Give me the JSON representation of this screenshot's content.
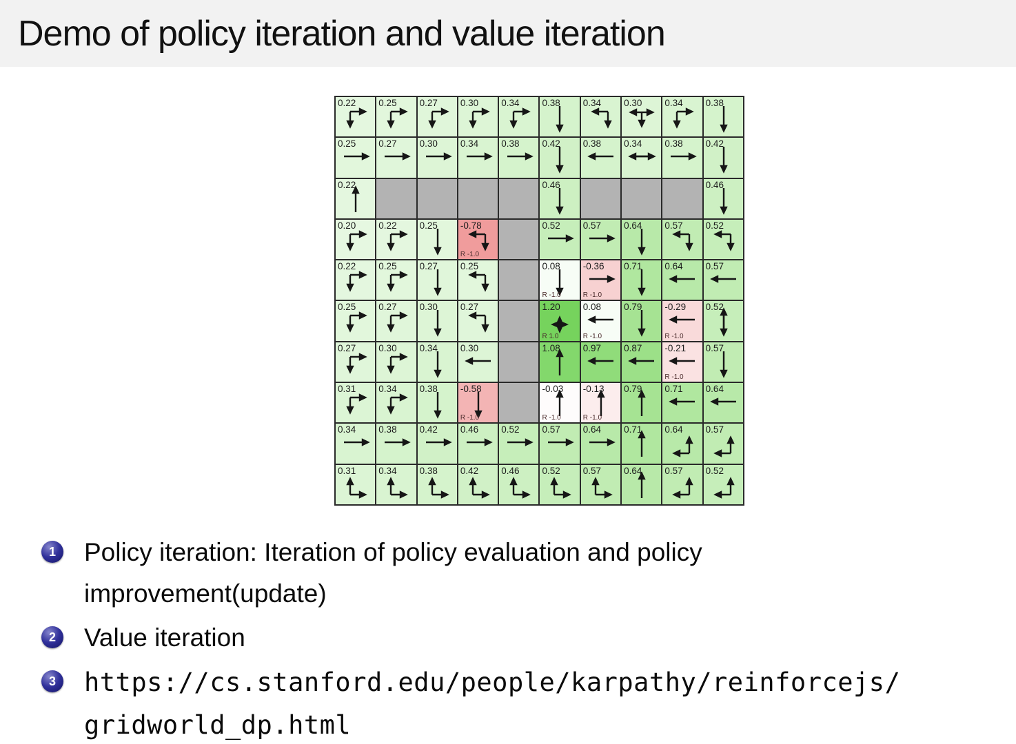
{
  "title": "Demo of policy iteration and value iteration",
  "colors": {
    "title_bar_bg": "#f2f2f2",
    "slide_bg": "#ffffff",
    "wall": "#b3b3b3",
    "grid_line": "#2a2a2a",
    "arrow": "#161616",
    "goal_green": "#76d35d",
    "penalty_red": "#f09c9c",
    "badge_navy": "#31319b"
  },
  "gridworld": {
    "description": "10x10 gridworld with state values, greedy policy arrows, reward labels and wall cells",
    "rows": [
      [
        {
          "value": "0.22",
          "arrows": [
            "down",
            "right"
          ],
          "bg": "#e4f7df"
        },
        {
          "value": "0.25",
          "arrows": [
            "down",
            "right"
          ],
          "bg": "#e2f7dc"
        },
        {
          "value": "0.27",
          "arrows": [
            "down",
            "right"
          ],
          "bg": "#e0f6da"
        },
        {
          "value": "0.30",
          "arrows": [
            "down",
            "right"
          ],
          "bg": "#ddf5d6"
        },
        {
          "value": "0.34",
          "arrows": [
            "down",
            "right"
          ],
          "bg": "#d9f4d1"
        },
        {
          "value": "0.38",
          "arrows": [
            "down"
          ],
          "bg": "#d5f3cc"
        },
        {
          "value": "0.34",
          "arrows": [
            "left",
            "down"
          ],
          "bg": "#d9f4d1"
        },
        {
          "value": "0.30",
          "arrows": [
            "left",
            "right",
            "down"
          ],
          "bg": "#ddf5d6"
        },
        {
          "value": "0.34",
          "arrows": [
            "down",
            "right"
          ],
          "bg": "#d9f4d1"
        },
        {
          "value": "0.38",
          "arrows": [
            "down"
          ],
          "bg": "#d5f3cc"
        }
      ],
      [
        {
          "value": "0.25",
          "arrows": [
            "right"
          ],
          "bg": "#e2f7dc"
        },
        {
          "value": "0.27",
          "arrows": [
            "right"
          ],
          "bg": "#e0f6da"
        },
        {
          "value": "0.30",
          "arrows": [
            "right"
          ],
          "bg": "#ddf5d6"
        },
        {
          "value": "0.34",
          "arrows": [
            "right"
          ],
          "bg": "#d9f4d1"
        },
        {
          "value": "0.38",
          "arrows": [
            "right"
          ],
          "bg": "#d5f3cc"
        },
        {
          "value": "0.42",
          "arrows": [
            "down"
          ],
          "bg": "#d1f1c7"
        },
        {
          "value": "0.38",
          "arrows": [
            "left"
          ],
          "bg": "#d5f3cc"
        },
        {
          "value": "0.34",
          "arrows": [
            "left",
            "right"
          ],
          "bg": "#d9f4d1"
        },
        {
          "value": "0.38",
          "arrows": [
            "right"
          ],
          "bg": "#d5f3cc"
        },
        {
          "value": "0.42",
          "arrows": [
            "down"
          ],
          "bg": "#d1f1c7"
        }
      ],
      [
        {
          "value": "0.22",
          "arrows": [
            "up"
          ],
          "bg": "#e4f7df"
        },
        {
          "wall": true
        },
        {
          "wall": true
        },
        {
          "wall": true
        },
        {
          "wall": true
        },
        {
          "value": "0.46",
          "arrows": [
            "down"
          ],
          "bg": "#cdf0c2"
        },
        {
          "wall": true
        },
        {
          "wall": true
        },
        {
          "wall": true
        },
        {
          "value": "0.46",
          "arrows": [
            "down"
          ],
          "bg": "#cdf0c2"
        }
      ],
      [
        {
          "value": "0.20",
          "arrows": [
            "down",
            "right"
          ],
          "bg": "#e6f8e1"
        },
        {
          "value": "0.22",
          "arrows": [
            "down",
            "right"
          ],
          "bg": "#e4f7df"
        },
        {
          "value": "0.25",
          "arrows": [
            "down"
          ],
          "bg": "#e2f7dc"
        },
        {
          "value": "-0.78",
          "arrows": [
            "left",
            "down"
          ],
          "bg": "#f09c9c",
          "reward": "R -1.0"
        },
        {
          "wall": true
        },
        {
          "value": "0.52",
          "arrows": [
            "right"
          ],
          "bg": "#c6eeba"
        },
        {
          "value": "0.57",
          "arrows": [
            "right"
          ],
          "bg": "#c1ecb3"
        },
        {
          "value": "0.64",
          "arrows": [
            "down"
          ],
          "bg": "#b8e9a9"
        },
        {
          "value": "0.57",
          "arrows": [
            "left",
            "down"
          ],
          "bg": "#c1ecb3"
        },
        {
          "value": "0.52",
          "arrows": [
            "left",
            "down"
          ],
          "bg": "#c6eeba"
        }
      ],
      [
        {
          "value": "0.22",
          "arrows": [
            "down",
            "right"
          ],
          "bg": "#e4f7df"
        },
        {
          "value": "0.25",
          "arrows": [
            "down",
            "right"
          ],
          "bg": "#e2f7dc"
        },
        {
          "value": "0.27",
          "arrows": [
            "down"
          ],
          "bg": "#e0f6da"
        },
        {
          "value": "0.25",
          "arrows": [
            "left",
            "down"
          ],
          "bg": "#e2f7dc"
        },
        {
          "wall": true
        },
        {
          "value": "0.08",
          "arrows": [
            "down"
          ],
          "bg": "#f7fdf6",
          "reward": "R -1.0"
        },
        {
          "value": "-0.36",
          "arrows": [
            "right"
          ],
          "bg": "#f7d1d1",
          "reward": "R -1.0"
        },
        {
          "value": "0.71",
          "arrows": [
            "down"
          ],
          "bg": "#b0e79f"
        },
        {
          "value": "0.64",
          "arrows": [
            "left"
          ],
          "bg": "#b8e9a9"
        },
        {
          "value": "0.57",
          "arrows": [
            "left"
          ],
          "bg": "#c1ecb3"
        }
      ],
      [
        {
          "value": "0.25",
          "arrows": [
            "down",
            "right"
          ],
          "bg": "#e2f7dc"
        },
        {
          "value": "0.27",
          "arrows": [
            "down",
            "right"
          ],
          "bg": "#e0f6da"
        },
        {
          "value": "0.30",
          "arrows": [
            "down"
          ],
          "bg": "#ddf5d6"
        },
        {
          "value": "0.27",
          "arrows": [
            "left",
            "down"
          ],
          "bg": "#e0f6da"
        },
        {
          "wall": true
        },
        {
          "value": "1.20",
          "arrows": [],
          "marker": "diamond",
          "bg": "#76d35d",
          "reward": "R 1.0"
        },
        {
          "value": "0.08",
          "arrows": [
            "left"
          ],
          "bg": "#f7fdf6",
          "reward": "R -1.0"
        },
        {
          "value": "0.79",
          "arrows": [
            "down"
          ],
          "bg": "#a6e393"
        },
        {
          "value": "-0.29",
          "arrows": [
            "left"
          ],
          "bg": "#f9dada",
          "reward": "R -1.0"
        },
        {
          "value": "0.52",
          "arrows": [
            "up",
            "down"
          ],
          "bg": "#c6eeba"
        }
      ],
      [
        {
          "value": "0.27",
          "arrows": [
            "down",
            "right"
          ],
          "bg": "#e0f6da"
        },
        {
          "value": "0.30",
          "arrows": [
            "down",
            "right"
          ],
          "bg": "#ddf5d6"
        },
        {
          "value": "0.34",
          "arrows": [
            "down"
          ],
          "bg": "#d9f4d1"
        },
        {
          "value": "0.30",
          "arrows": [
            "left"
          ],
          "bg": "#ddf5d6"
        },
        {
          "wall": true
        },
        {
          "value": "1.08",
          "arrows": [
            "up"
          ],
          "bg": "#83d86c"
        },
        {
          "value": "0.97",
          "arrows": [
            "left"
          ],
          "bg": "#90dc7a"
        },
        {
          "value": "0.87",
          "arrows": [
            "left"
          ],
          "bg": "#9ce088"
        },
        {
          "value": "-0.21",
          "arrows": [
            "left"
          ],
          "bg": "#fae2e2",
          "reward": "R -1.0"
        },
        {
          "value": "0.57",
          "arrows": [
            "down"
          ],
          "bg": "#c1ecb3"
        }
      ],
      [
        {
          "value": "0.31",
          "arrows": [
            "down",
            "right"
          ],
          "bg": "#dcf5d5"
        },
        {
          "value": "0.34",
          "arrows": [
            "down",
            "right"
          ],
          "bg": "#d9f4d1"
        },
        {
          "value": "0.38",
          "arrows": [
            "down"
          ],
          "bg": "#d5f3cc"
        },
        {
          "value": "-0.58",
          "arrows": [
            "down"
          ],
          "bg": "#f3b4b4",
          "reward": "R -1.0"
        },
        {
          "wall": true
        },
        {
          "value": "-0.03",
          "arrows": [
            "up"
          ],
          "bg": "#fefcfc",
          "reward": "R -1.0"
        },
        {
          "value": "-0.13",
          "arrows": [
            "up"
          ],
          "bg": "#fceded",
          "reward": "R -1.0"
        },
        {
          "value": "0.79",
          "arrows": [
            "up"
          ],
          "bg": "#a6e393"
        },
        {
          "value": "0.71",
          "arrows": [
            "left"
          ],
          "bg": "#b0e79f"
        },
        {
          "value": "0.64",
          "arrows": [
            "left"
          ],
          "bg": "#b8e9a9"
        }
      ],
      [
        {
          "value": "0.34",
          "arrows": [
            "right"
          ],
          "bg": "#d9f4d1"
        },
        {
          "value": "0.38",
          "arrows": [
            "right"
          ],
          "bg": "#d5f3cc"
        },
        {
          "value": "0.42",
          "arrows": [
            "right"
          ],
          "bg": "#d1f1c7"
        },
        {
          "value": "0.46",
          "arrows": [
            "right"
          ],
          "bg": "#cdf0c2"
        },
        {
          "value": "0.52",
          "arrows": [
            "right"
          ],
          "bg": "#c6eeba"
        },
        {
          "value": "0.57",
          "arrows": [
            "right"
          ],
          "bg": "#c1ecb3"
        },
        {
          "value": "0.64",
          "arrows": [
            "right"
          ],
          "bg": "#b8e9a9"
        },
        {
          "value": "0.71",
          "arrows": [
            "up"
          ],
          "bg": "#b0e79f"
        },
        {
          "value": "0.64",
          "arrows": [
            "up",
            "left"
          ],
          "bg": "#b8e9a9"
        },
        {
          "value": "0.57",
          "arrows": [
            "up",
            "left"
          ],
          "bg": "#c1ecb3"
        }
      ],
      [
        {
          "value": "0.31",
          "arrows": [
            "up",
            "right"
          ],
          "bg": "#dcf5d5"
        },
        {
          "value": "0.34",
          "arrows": [
            "up",
            "right"
          ],
          "bg": "#d9f4d1"
        },
        {
          "value": "0.38",
          "arrows": [
            "up",
            "right"
          ],
          "bg": "#d5f3cc"
        },
        {
          "value": "0.42",
          "arrows": [
            "up",
            "right"
          ],
          "bg": "#d1f1c7"
        },
        {
          "value": "0.46",
          "arrows": [
            "up",
            "right"
          ],
          "bg": "#cdf0c2"
        },
        {
          "value": "0.52",
          "arrows": [
            "up",
            "right"
          ],
          "bg": "#c6eeba"
        },
        {
          "value": "0.57",
          "arrows": [
            "up",
            "right"
          ],
          "bg": "#c1ecb3"
        },
        {
          "value": "0.64",
          "arrows": [
            "up"
          ],
          "bg": "#b8e9a9"
        },
        {
          "value": "0.57",
          "arrows": [
            "up",
            "left"
          ],
          "bg": "#c1ecb3"
        },
        {
          "value": "0.52",
          "arrows": [
            "up",
            "left"
          ],
          "bg": "#c6eeba"
        }
      ]
    ]
  },
  "bullets": [
    {
      "number": "1",
      "mono": false,
      "lines": [
        "Policy iteration: Iteration of policy evaluation and policy",
        "improvement(update)"
      ]
    },
    {
      "number": "2",
      "mono": false,
      "lines": [
        "Value iteration"
      ]
    },
    {
      "number": "3",
      "mono": true,
      "lines": [
        "https://cs.stanford.edu/people/karpathy/reinforcejs/",
        "gridworld_dp.html"
      ]
    }
  ]
}
